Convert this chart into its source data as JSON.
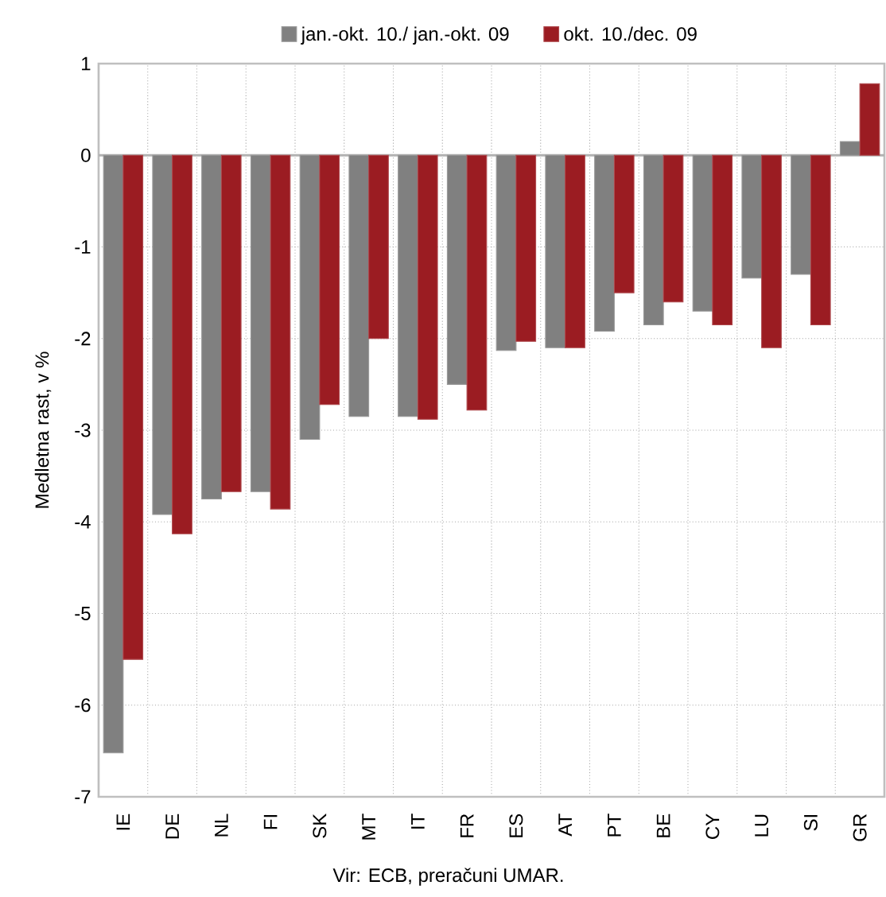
{
  "chart_data": {
    "type": "bar",
    "ylabel": "Medletna rast, v %",
    "categories": [
      "IE",
      "DE",
      "NL",
      "FI",
      "SK",
      "MT",
      "IT",
      "FR",
      "ES",
      "AT",
      "PT",
      "BE",
      "CY",
      "LU",
      "SI",
      "GR"
    ],
    "series": [
      {
        "name": "jan.-okt. 10./ jan.-okt. 09",
        "color": "#808080",
        "values": [
          -6.52,
          -3.92,
          -3.75,
          -3.67,
          -3.1,
          -2.85,
          -2.85,
          -2.5,
          -2.13,
          -2.1,
          -1.92,
          -1.85,
          -1.7,
          -1.34,
          -1.3,
          0.15
        ]
      },
      {
        "name": "okt. 10./dec. 09",
        "color": "#9b1c22",
        "values": [
          -5.5,
          -4.13,
          -3.67,
          -3.86,
          -2.72,
          -2.0,
          -2.88,
          -2.78,
          -2.03,
          -2.1,
          -1.5,
          -1.6,
          -1.85,
          -2.1,
          -1.85,
          0.78
        ]
      }
    ],
    "ylim": [
      -7,
      1
    ],
    "yticks": [
      -7,
      -6,
      -5,
      -4,
      -3,
      -2,
      -1,
      0,
      1
    ],
    "grid": true,
    "legend": "top",
    "annotations": [
      "Vir: ECB, preračuni UMAR."
    ]
  }
}
